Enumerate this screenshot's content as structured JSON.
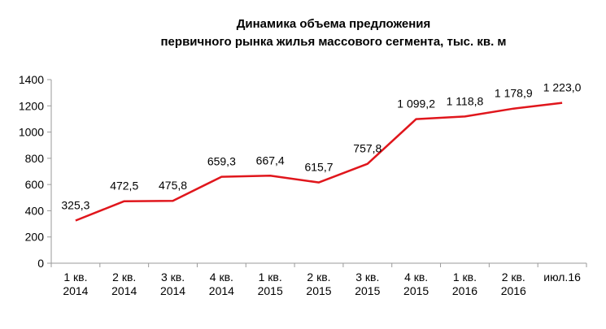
{
  "chart_data": {
    "type": "line",
    "title_lines": [
      "Динамика объема предложения",
      "первичного рынка жилья массового сегмента, тыс. кв. м"
    ],
    "categories": [
      [
        "1 кв.",
        "2014"
      ],
      [
        "2 кв.",
        "2014"
      ],
      [
        "3 кв.",
        "2014"
      ],
      [
        "4 кв.",
        "2014"
      ],
      [
        "1 кв.",
        "2015"
      ],
      [
        "2 кв.",
        "2015"
      ],
      [
        "3 кв.",
        "2015"
      ],
      [
        "4 кв.",
        "2015"
      ],
      [
        "1 кв.",
        "2016"
      ],
      [
        "2 кв.",
        "2016"
      ],
      [
        "июл.16"
      ]
    ],
    "values": [
      325.3,
      472.5,
      475.8,
      659.3,
      667.4,
      615.7,
      757.8,
      1099.2,
      1118.8,
      1178.9,
      1223.0
    ],
    "data_labels": [
      "325,3",
      "472,5",
      "475,8",
      "659,3",
      "667,4",
      "615,7",
      "757,8",
      "1 099,2",
      "1 118,8",
      "1 178,9",
      "1 223,0"
    ],
    "yticks": [
      0,
      200,
      400,
      600,
      800,
      1000,
      1200,
      1400
    ],
    "ylim": [
      0,
      1400
    ],
    "grid": false,
    "legend": "none",
    "line_color": "#e0161c"
  }
}
